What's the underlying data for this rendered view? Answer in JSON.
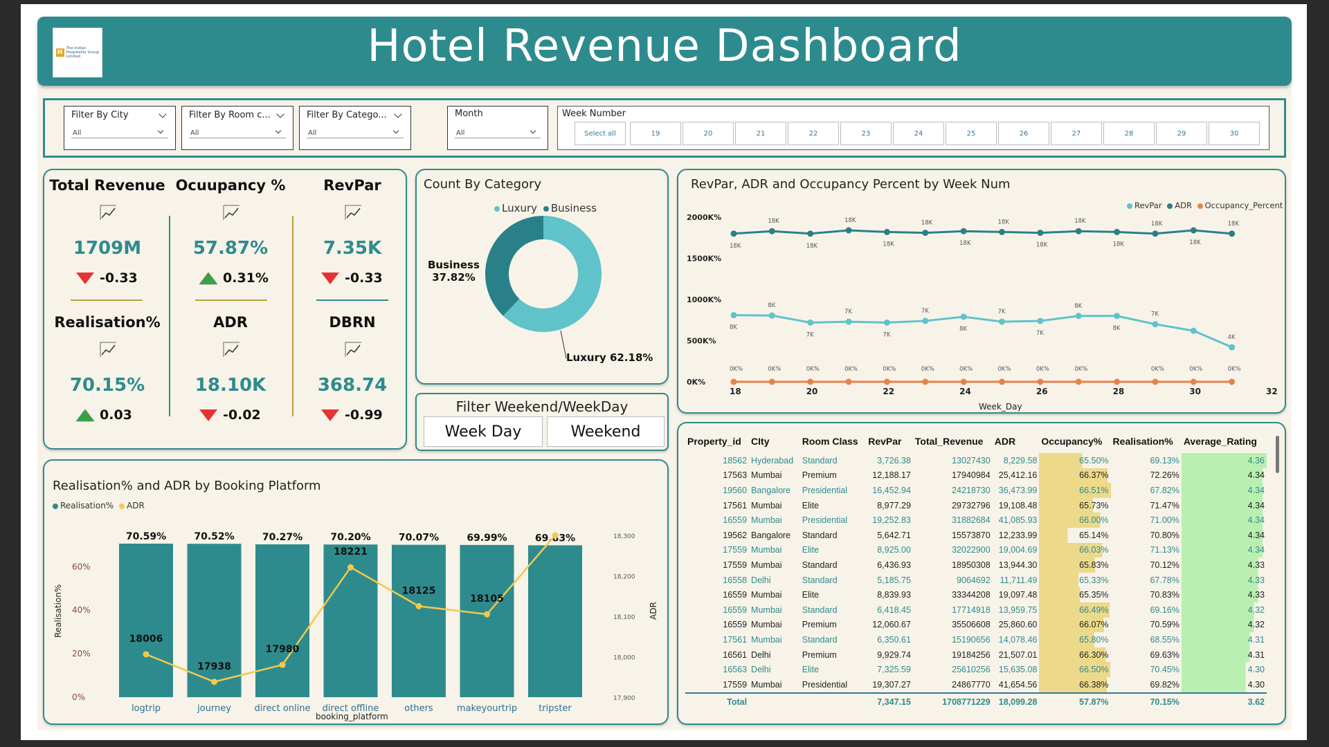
{
  "header": {
    "title": "Hotel Revenue Dashboard",
    "logo_text": "The Indian Hospitality Group Limited",
    "logo_mark": "H"
  },
  "filters": {
    "city": {
      "label": "Filter By City",
      "value": "All"
    },
    "room_class": {
      "label": "Filter By Room c...",
      "value": "All"
    },
    "category": {
      "label": "Filter By Catego...",
      "value": "All"
    },
    "month": {
      "label": "Month",
      "value": "All"
    },
    "week_number": {
      "label": "Week Number",
      "select_all": "Select all",
      "weeks": [
        "19",
        "20",
        "21",
        "22",
        "23",
        "24",
        "25",
        "26",
        "27",
        "28",
        "29",
        "30"
      ]
    }
  },
  "kpis": [
    {
      "title": "Total Revenue",
      "value": "1709M",
      "delta": "-0.33",
      "dir": "down"
    },
    {
      "title": "Ocuupancy %",
      "value": "57.87%",
      "delta": "0.31%",
      "dir": "up"
    },
    {
      "title": "RevPar",
      "value": "7.35K",
      "delta": "-0.33",
      "dir": "down"
    },
    {
      "title": "Realisation%",
      "value": "70.15%",
      "delta": "0.03",
      "dir": "up"
    },
    {
      "title": "ADR",
      "value": "18.10K",
      "delta": "-0.02",
      "dir": "down"
    },
    {
      "title": "DBRN",
      "value": "368.74",
      "delta": "-0.99",
      "dir": "down"
    }
  ],
  "count_by_category": {
    "title": "Count By Category",
    "legend": [
      "Luxury",
      "Business"
    ],
    "colors": {
      "Luxury": "#5fc3c9",
      "Business": "#2a8088"
    },
    "label_business_name": "Business",
    "label_business_pct": "37.82%",
    "label_luxury": "Luxury 62.18%",
    "chart_data": {
      "type": "pie",
      "categories": [
        "Luxury",
        "Business"
      ],
      "values": [
        62.18,
        37.82
      ]
    }
  },
  "weekend_filter": {
    "title": "Filter Weekend/WeekDay",
    "options": [
      "Week Day",
      "Weekend"
    ]
  },
  "line_chart": {
    "title": "RevPar, ADR and Occupancy Percent by Week Num",
    "legend": [
      "RevPar",
      "ADR",
      "Occupancy_Percent"
    ],
    "colors": {
      "RevPar": "#5fc3c9",
      "ADR": "#2a8088",
      "Occupancy_Percent": "#e8824a"
    },
    "xlabel": "Week_Day",
    "x_ticks": [
      "18",
      "20",
      "22",
      "24",
      "26",
      "28",
      "30",
      "32"
    ],
    "y_ticks": [
      "0K%",
      "500K%",
      "1000K%",
      "1500K%",
      "2000K%"
    ],
    "chart_data": {
      "type": "line",
      "x": [
        18,
        19,
        20,
        21,
        22,
        23,
        24,
        25,
        26,
        27,
        28,
        29,
        30,
        31
      ],
      "ylim": [
        0,
        2000
      ],
      "series": [
        {
          "name": "ADR",
          "values": [
            1800,
            1830,
            1800,
            1840,
            1820,
            1810,
            1830,
            1820,
            1810,
            1830,
            1820,
            1800,
            1840,
            1800
          ],
          "labels": [
            "18K",
            "18K",
            "18K",
            "18K",
            "18K",
            "18K",
            "18K",
            "18K",
            "18K",
            "18K",
            "18K",
            "18K",
            "18K",
            "18K"
          ]
        },
        {
          "name": "RevPar",
          "values": [
            810,
            805,
            720,
            730,
            720,
            740,
            790,
            730,
            740,
            800,
            800,
            700,
            620,
            420
          ],
          "labels": [
            "8K",
            "8K",
            "7K",
            "7K",
            "7K",
            "7K",
            "8K",
            "7K",
            "7K",
            "8K",
            "8K",
            "7K",
            "",
            "4K"
          ]
        },
        {
          "name": "Occupancy_Percent",
          "values": [
            0,
            0,
            0,
            0,
            0,
            0,
            0,
            0,
            0,
            0,
            0,
            0,
            0,
            0
          ],
          "labels": [
            "0K%",
            "0K%",
            "0K%",
            "0K%",
            "0K%",
            "0K%",
            "0K%",
            "0K%",
            "0K%",
            "0K%",
            "",
            "0K%",
            "0K%",
            "0K%"
          ]
        }
      ]
    }
  },
  "bar_chart": {
    "title": "Realisation% and ADR by Booking Platform",
    "legend": [
      "Realisation%",
      "ADR"
    ],
    "colors": {
      "Realisation%": "#2e8b8d",
      "ADR": "#f2c94c"
    },
    "xlabel": "booking_platform",
    "ylabel_left": "Realisation%",
    "ylabel_right": "ADR",
    "y_ticks_left": [
      "0%",
      "20%",
      "40%",
      "60%"
    ],
    "y_ticks_right": [
      "17,900",
      "18,000",
      "18,100",
      "18,200",
      "18,300"
    ],
    "chart_data": {
      "type": "bar",
      "categories": [
        "logtrip",
        "journey",
        "direct online",
        "direct offline",
        "others",
        "makeyourtrip",
        "tripster"
      ],
      "series": [
        {
          "name": "Realisation%",
          "values": [
            70.59,
            70.52,
            70.27,
            70.2,
            70.07,
            69.99,
            69.83
          ],
          "labels": [
            "70.59%",
            "70.52%",
            "70.27%",
            "70.20%",
            "70.07%",
            "69.99%",
            "69.83%"
          ]
        },
        {
          "name": "ADR",
          "values": [
            18006,
            17938,
            17980,
            18221,
            18125,
            18105,
            18300
          ],
          "labels": [
            "18006",
            "17938",
            "17980",
            "18221",
            "18125",
            "18105",
            ""
          ]
        }
      ],
      "ylim_left": [
        0,
        70.59
      ],
      "ylim_right": [
        17900,
        18300
      ]
    }
  },
  "table": {
    "columns": [
      "Property_id",
      "CIty",
      "Room Class",
      "RevPar",
      "Total_Revenue",
      "ADR",
      "Occupancy%",
      "Realisation%",
      "Average_Rating"
    ],
    "rows": [
      [
        "18562",
        "Hyderabad",
        "Standard",
        "3,726.38",
        "13027430",
        "8,229.58",
        "65.50%",
        "69.13%",
        "4.36"
      ],
      [
        "17563",
        "Mumbai",
        "Premium",
        "12,188.17",
        "17940984",
        "25,412.16",
        "66.37%",
        "72.26%",
        "4.34"
      ],
      [
        "19560",
        "Bangalore",
        "Presidential",
        "16,452.94",
        "24218730",
        "36,473.99",
        "66.51%",
        "67.82%",
        "4.34"
      ],
      [
        "17561",
        "Mumbai",
        "Elite",
        "8,977.29",
        "29732796",
        "19,108.48",
        "65.73%",
        "71.47%",
        "4.34"
      ],
      [
        "16559",
        "Mumbai",
        "Presidential",
        "19,252.83",
        "31882684",
        "41,085.93",
        "66.00%",
        "71.00%",
        "4.34"
      ],
      [
        "19562",
        "Bangalore",
        "Standard",
        "5,642.71",
        "15573870",
        "12,233.99",
        "65.14%",
        "70.80%",
        "4.34"
      ],
      [
        "17559",
        "Mumbai",
        "Elite",
        "8,925.00",
        "32022900",
        "19,004.69",
        "66.03%",
        "71.13%",
        "4.34"
      ],
      [
        "17559",
        "Mumbai",
        "Standard",
        "6,436.93",
        "18950308",
        "13,944.30",
        "65.83%",
        "70.12%",
        "4.33"
      ],
      [
        "16558",
        "Delhi",
        "Standard",
        "5,185.75",
        "9064692",
        "11,711.49",
        "65.33%",
        "67.78%",
        "4.33"
      ],
      [
        "16559",
        "Mumbai",
        "Elite",
        "8,839.93",
        "33344208",
        "19,097.48",
        "65.35%",
        "70.83%",
        "4.33"
      ],
      [
        "16559",
        "Mumbai",
        "Standard",
        "6,418.45",
        "17714918",
        "13,959.75",
        "66.49%",
        "69.16%",
        "4.32"
      ],
      [
        "16559",
        "Mumbai",
        "Premium",
        "12,060.67",
        "35506608",
        "25,860.60",
        "66.07%",
        "70.59%",
        "4.32"
      ],
      [
        "17561",
        "Mumbai",
        "Standard",
        "6,350.61",
        "15190656",
        "14,078.46",
        "65.80%",
        "68.55%",
        "4.31"
      ],
      [
        "16561",
        "Delhi",
        "Premium",
        "9,929.74",
        "19184256",
        "21,507.01",
        "66.30%",
        "69.63%",
        "4.31"
      ],
      [
        "16563",
        "Delhi",
        "Elite",
        "7,325.59",
        "25610256",
        "15,635.08",
        "66.50%",
        "70.45%",
        "4.30"
      ],
      [
        "17559",
        "Mumbai",
        "Presidential",
        "19,307.27",
        "24867770",
        "41,654.56",
        "66.38%",
        "69.82%",
        "4.30"
      ]
    ],
    "occupancy_fill": [
      0.6,
      0.95,
      1.0,
      0.75,
      0.85,
      0.4,
      0.88,
      0.78,
      0.55,
      0.57,
      0.98,
      0.9,
      0.77,
      0.93,
      0.99,
      0.94
    ],
    "rating_fill": [
      1.0,
      0.95,
      0.95,
      0.95,
      0.95,
      0.95,
      0.95,
      0.9,
      0.9,
      0.9,
      0.85,
      0.85,
      0.8,
      0.8,
      0.75,
      0.75
    ],
    "total": [
      "Total",
      "",
      "",
      "7,347.15",
      "1708771229",
      "18,099.28",
      "57.87%",
      "70.15%",
      "3.62"
    ]
  }
}
